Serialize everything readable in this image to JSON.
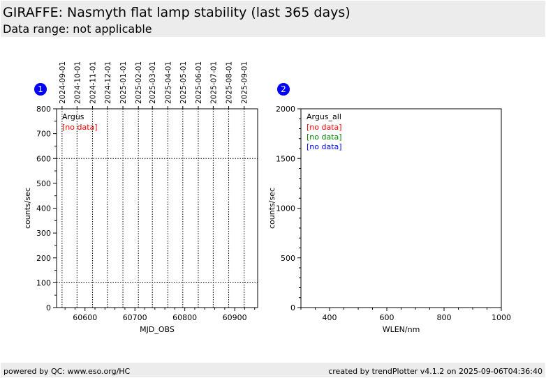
{
  "header": {
    "title": "GIRAFFE: Nasmyth flat lamp stability (last 365 days)",
    "subtitle": "Data range: not applicable"
  },
  "footer": {
    "left": "powered by QC: www.eso.org/HC",
    "right": "created by trendPlotter v4.1.2 on 2025-09-06T04:36:40"
  },
  "colors": {
    "header_bg": "#ececec",
    "badge": "#0000ff",
    "no_data_1": "#ff0000",
    "no_data_2": "#008000",
    "no_data_3": "#0000ff"
  },
  "chart_data": [
    {
      "type": "scatter",
      "panel_number": "1",
      "xlabel": "MJD_OBS",
      "ylabel": "counts/sec",
      "xlim": [
        60543,
        60946
      ],
      "ylim": [
        0,
        800
      ],
      "x_ticks": [
        60600,
        60700,
        60800,
        60900
      ],
      "y_ticks": [
        0,
        100,
        200,
        300,
        400,
        500,
        600,
        700,
        800
      ],
      "top_axis_date_ticks": [
        {
          "label": "2024-09-01",
          "mjd": 60554
        },
        {
          "label": "2024-10-01",
          "mjd": 60584
        },
        {
          "label": "2024-11-01",
          "mjd": 60615
        },
        {
          "label": "2024-12-01",
          "mjd": 60645
        },
        {
          "label": "2025-01-01",
          "mjd": 60676
        },
        {
          "label": "2025-02-01",
          "mjd": 60707
        },
        {
          "label": "2025-03-01",
          "mjd": 60735
        },
        {
          "label": "2025-04-01",
          "mjd": 60766
        },
        {
          "label": "2025-05-01",
          "mjd": 60796
        },
        {
          "label": "2025-06-01",
          "mjd": 60827
        },
        {
          "label": "2025-07-01",
          "mjd": 60857
        },
        {
          "label": "2025-08-01",
          "mjd": 60888
        },
        {
          "label": "2025-09-01",
          "mjd": 60919
        }
      ],
      "horizontal_reference_lines": [
        100,
        600
      ],
      "legend": {
        "title": "Argus",
        "placement": "top-left",
        "entries": [
          "[no data]"
        ]
      },
      "series": []
    },
    {
      "type": "scatter",
      "panel_number": "2",
      "xlabel": "WLEN/nm",
      "ylabel": "counts/sec",
      "xlim": [
        300,
        1000
      ],
      "ylim": [
        0,
        2000
      ],
      "x_ticks": [
        400,
        600,
        800,
        1000
      ],
      "y_ticks": [
        0,
        500,
        1000,
        1500,
        2000
      ],
      "legend": {
        "title": "Argus_all",
        "placement": "top-left",
        "entries": [
          "[no data]",
          "[no data]",
          "[no data]"
        ]
      },
      "series": []
    }
  ]
}
